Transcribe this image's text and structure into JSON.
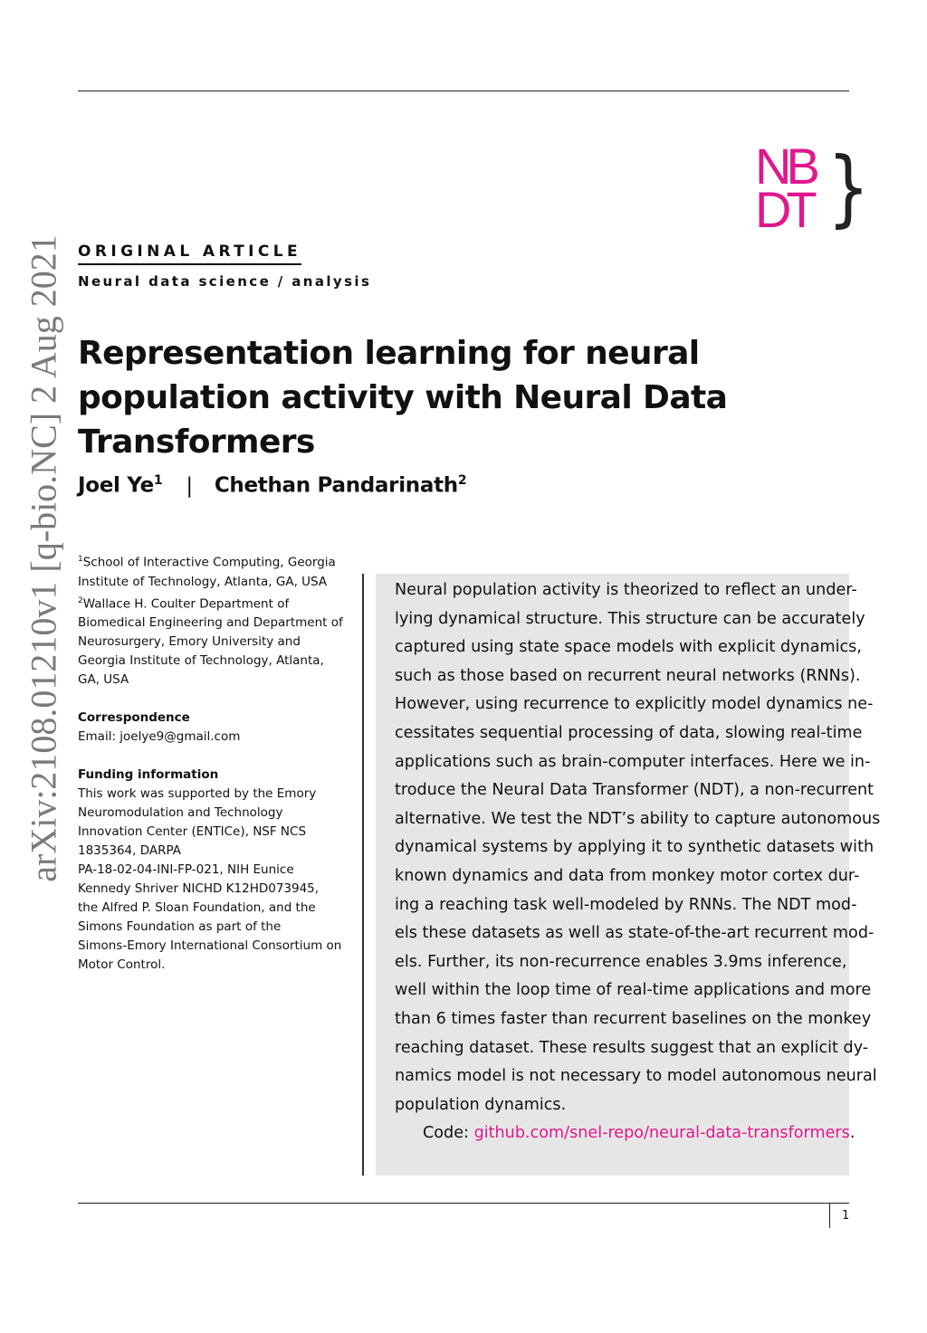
{
  "stamp": "arXiv:2108.01210v1  [q-bio.NC]  2 Aug 2021",
  "logo": {
    "line1": "NB",
    "line2": "DT",
    "brace": "}",
    "color": "#e0188c"
  },
  "article_type": "ORIGINAL ARTICLE",
  "subject": "Neural data science / analysis",
  "title": "Representation learning for neural population activity with Neural Data Transformers",
  "authors": [
    {
      "name": "Joel Ye",
      "sup": "1"
    },
    {
      "name": "Chethan Pandarinath",
      "sup": "2"
    }
  ],
  "author_separator": "|",
  "affiliations": [
    {
      "sup": "1",
      "lines": [
        "School of Interactive Computing, Georgia",
        "Institute of Technology, Atlanta, GA, USA"
      ]
    },
    {
      "sup": "2",
      "lines": [
        "Wallace H. Coulter Department of",
        "Biomedical Engineering and Department of",
        "Neurosurgery, Emory University and",
        "Georgia Institute of Technology, Atlanta,",
        "GA, USA"
      ]
    }
  ],
  "correspondence": {
    "heading": "Correspondence",
    "email": "Email: joelye9@gmail.com"
  },
  "funding": {
    "heading": "Funding information",
    "lines": [
      "This work was supported by the Emory",
      "Neuromodulation and Technology",
      "Innovation Center (ENTICe), NSF NCS",
      "1835364, DARPA",
      "PA-18-02-04-INI-FP-021, NIH Eunice",
      "Kennedy Shriver NICHD K12HD073945,",
      "the Alfred P. Sloan Foundation, and the",
      "Simons Foundation as part of the",
      "Simons-Emory International Consortium on",
      "Motor Control."
    ]
  },
  "abstract": {
    "lines": [
      "Neural population activity is theorized to reflect an under-",
      "lying dynamical structure. This structure can be accurately",
      "captured using state space models with explicit dynamics,",
      "such as those based on recurrent neural networks (RNNs).",
      "However, using recurrence to explicitly model dynamics ne-",
      "cessitates sequential processing of data, slowing real-time",
      "applications such as brain-computer interfaces. Here we in-",
      "troduce the Neural Data Transformer (NDT), a non-recurrent",
      "alternative. We test the NDT’s ability to capture autonomous",
      "dynamical systems by applying it to synthetic datasets with",
      "known dynamics and data from monkey motor cortex dur-",
      "ing a reaching task well-modeled by RNNs. The NDT mod-",
      "els these datasets as well as state-of-the-art recurrent mod-",
      "els.  Further, its non-recurrence enables 3.9ms inference,",
      "well within the loop time of real-time applications and more",
      "than 6 times faster than recurrent baselines on the monkey",
      "reaching dataset. These results suggest that an explicit dy-",
      "namics model is not necessary to model autonomous neural",
      "population dynamics."
    ],
    "code_label": "Code: ",
    "code_link": "github.com/snel-repo/neural-data-transformers",
    "code_end": "."
  },
  "page_number": "1"
}
